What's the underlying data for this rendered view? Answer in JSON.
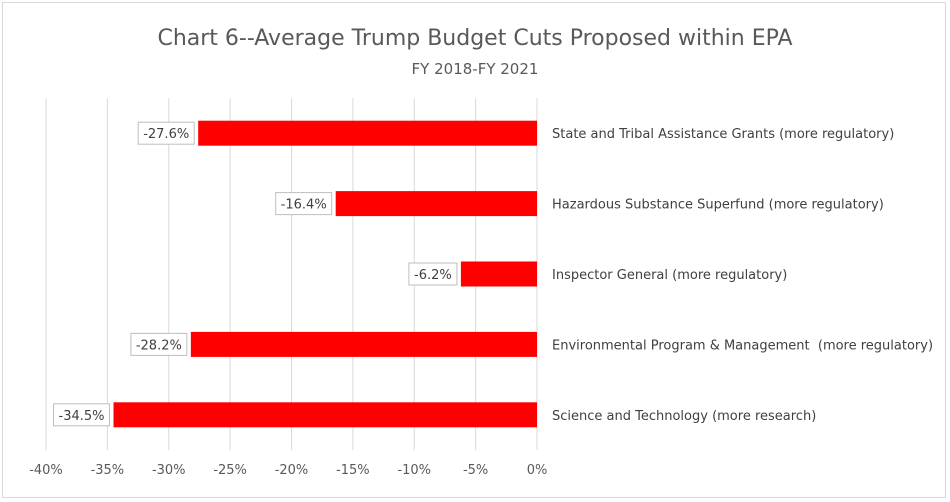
{
  "chart_data": {
    "type": "bar",
    "orientation": "horizontal",
    "title": "Chart 6--Average Trump Budget Cuts Proposed within EPA",
    "subtitle": "FY 2018-FY 2021",
    "categories": [
      "State and Tribal Assistance Grants (more regulatory)",
      "Hazardous Substance Superfund (more regulatory)",
      "Inspector General (more regulatory)",
      "Environmental Program & Management  (more regulatory)",
      "Science and Technology (more research)"
    ],
    "values": [
      -27.6,
      -16.4,
      -6.2,
      -28.2,
      -34.5
    ],
    "data_labels": [
      "-27.6%",
      "-16.4%",
      "-6.2%",
      "-28.2%",
      "-34.5%"
    ],
    "xlim": [
      -40,
      0
    ],
    "x_ticks": [
      -40,
      -35,
      -30,
      -25,
      -20,
      -15,
      -10,
      -5,
      0
    ],
    "x_tick_labels": [
      "-40%",
      "-35%",
      "-30%",
      "-25%",
      "-20%",
      "-15%",
      "-10%",
      "-5%",
      "0%"
    ],
    "grid": "vertical",
    "bar_color": "#ff0000",
    "grid_color": "#d9d9d9"
  }
}
